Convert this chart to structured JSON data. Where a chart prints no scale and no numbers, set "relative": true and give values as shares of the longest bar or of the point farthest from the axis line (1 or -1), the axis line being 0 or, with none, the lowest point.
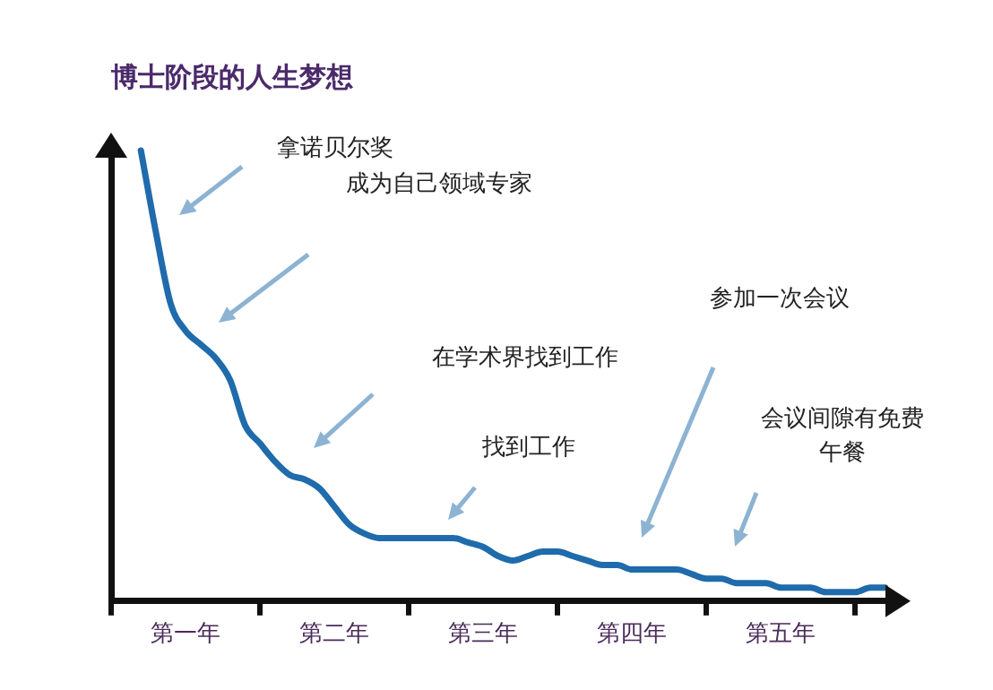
{
  "chart_data": {
    "type": "line",
    "title": "博士阶段的人生梦想",
    "relative": true,
    "color": "#1f6bab",
    "marker": "none",
    "grid": false,
    "legend": false,
    "categories": [
      null,
      null,
      null,
      null,
      null,
      "第一年",
      null,
      null,
      null,
      null,
      null,
      null,
      null,
      null,
      null,
      "第二年",
      null,
      null,
      null,
      null,
      null,
      null,
      null,
      null,
      null,
      "第三年",
      null,
      null,
      null,
      null,
      null,
      null,
      null,
      null,
      null,
      "第四年",
      null,
      null,
      null,
      null,
      null,
      null,
      null,
      null,
      null,
      "第五年",
      null,
      null,
      null,
      null,
      null,
      null,
      null
    ],
    "values": [
      null,
      null,
      1.0,
      0.82,
      0.66,
      0.6,
      0.57,
      0.54,
      0.49,
      0.39,
      0.35,
      0.31,
      0.28,
      0.27,
      0.25,
      0.21,
      0.17,
      0.15,
      0.14,
      0.14,
      0.14,
      0.14,
      0.14,
      0.14,
      0.13,
      0.12,
      0.1,
      0.09,
      0.1,
      0.11,
      0.11,
      0.1,
      0.09,
      0.08,
      0.08,
      0.07,
      0.07,
      0.07,
      0.07,
      0.06,
      0.05,
      0.05,
      0.04,
      0.04,
      0.04,
      0.03,
      0.03,
      0.03,
      0.02,
      0.02,
      0.02,
      0.03,
      0.03
    ],
    "annotations": [
      "拿诺贝尔奖",
      "成为自己领域专家",
      "在学术界找到工作",
      "找到工作",
      "参加一次会议",
      "会议间隙有免费午餐"
    ]
  }
}
